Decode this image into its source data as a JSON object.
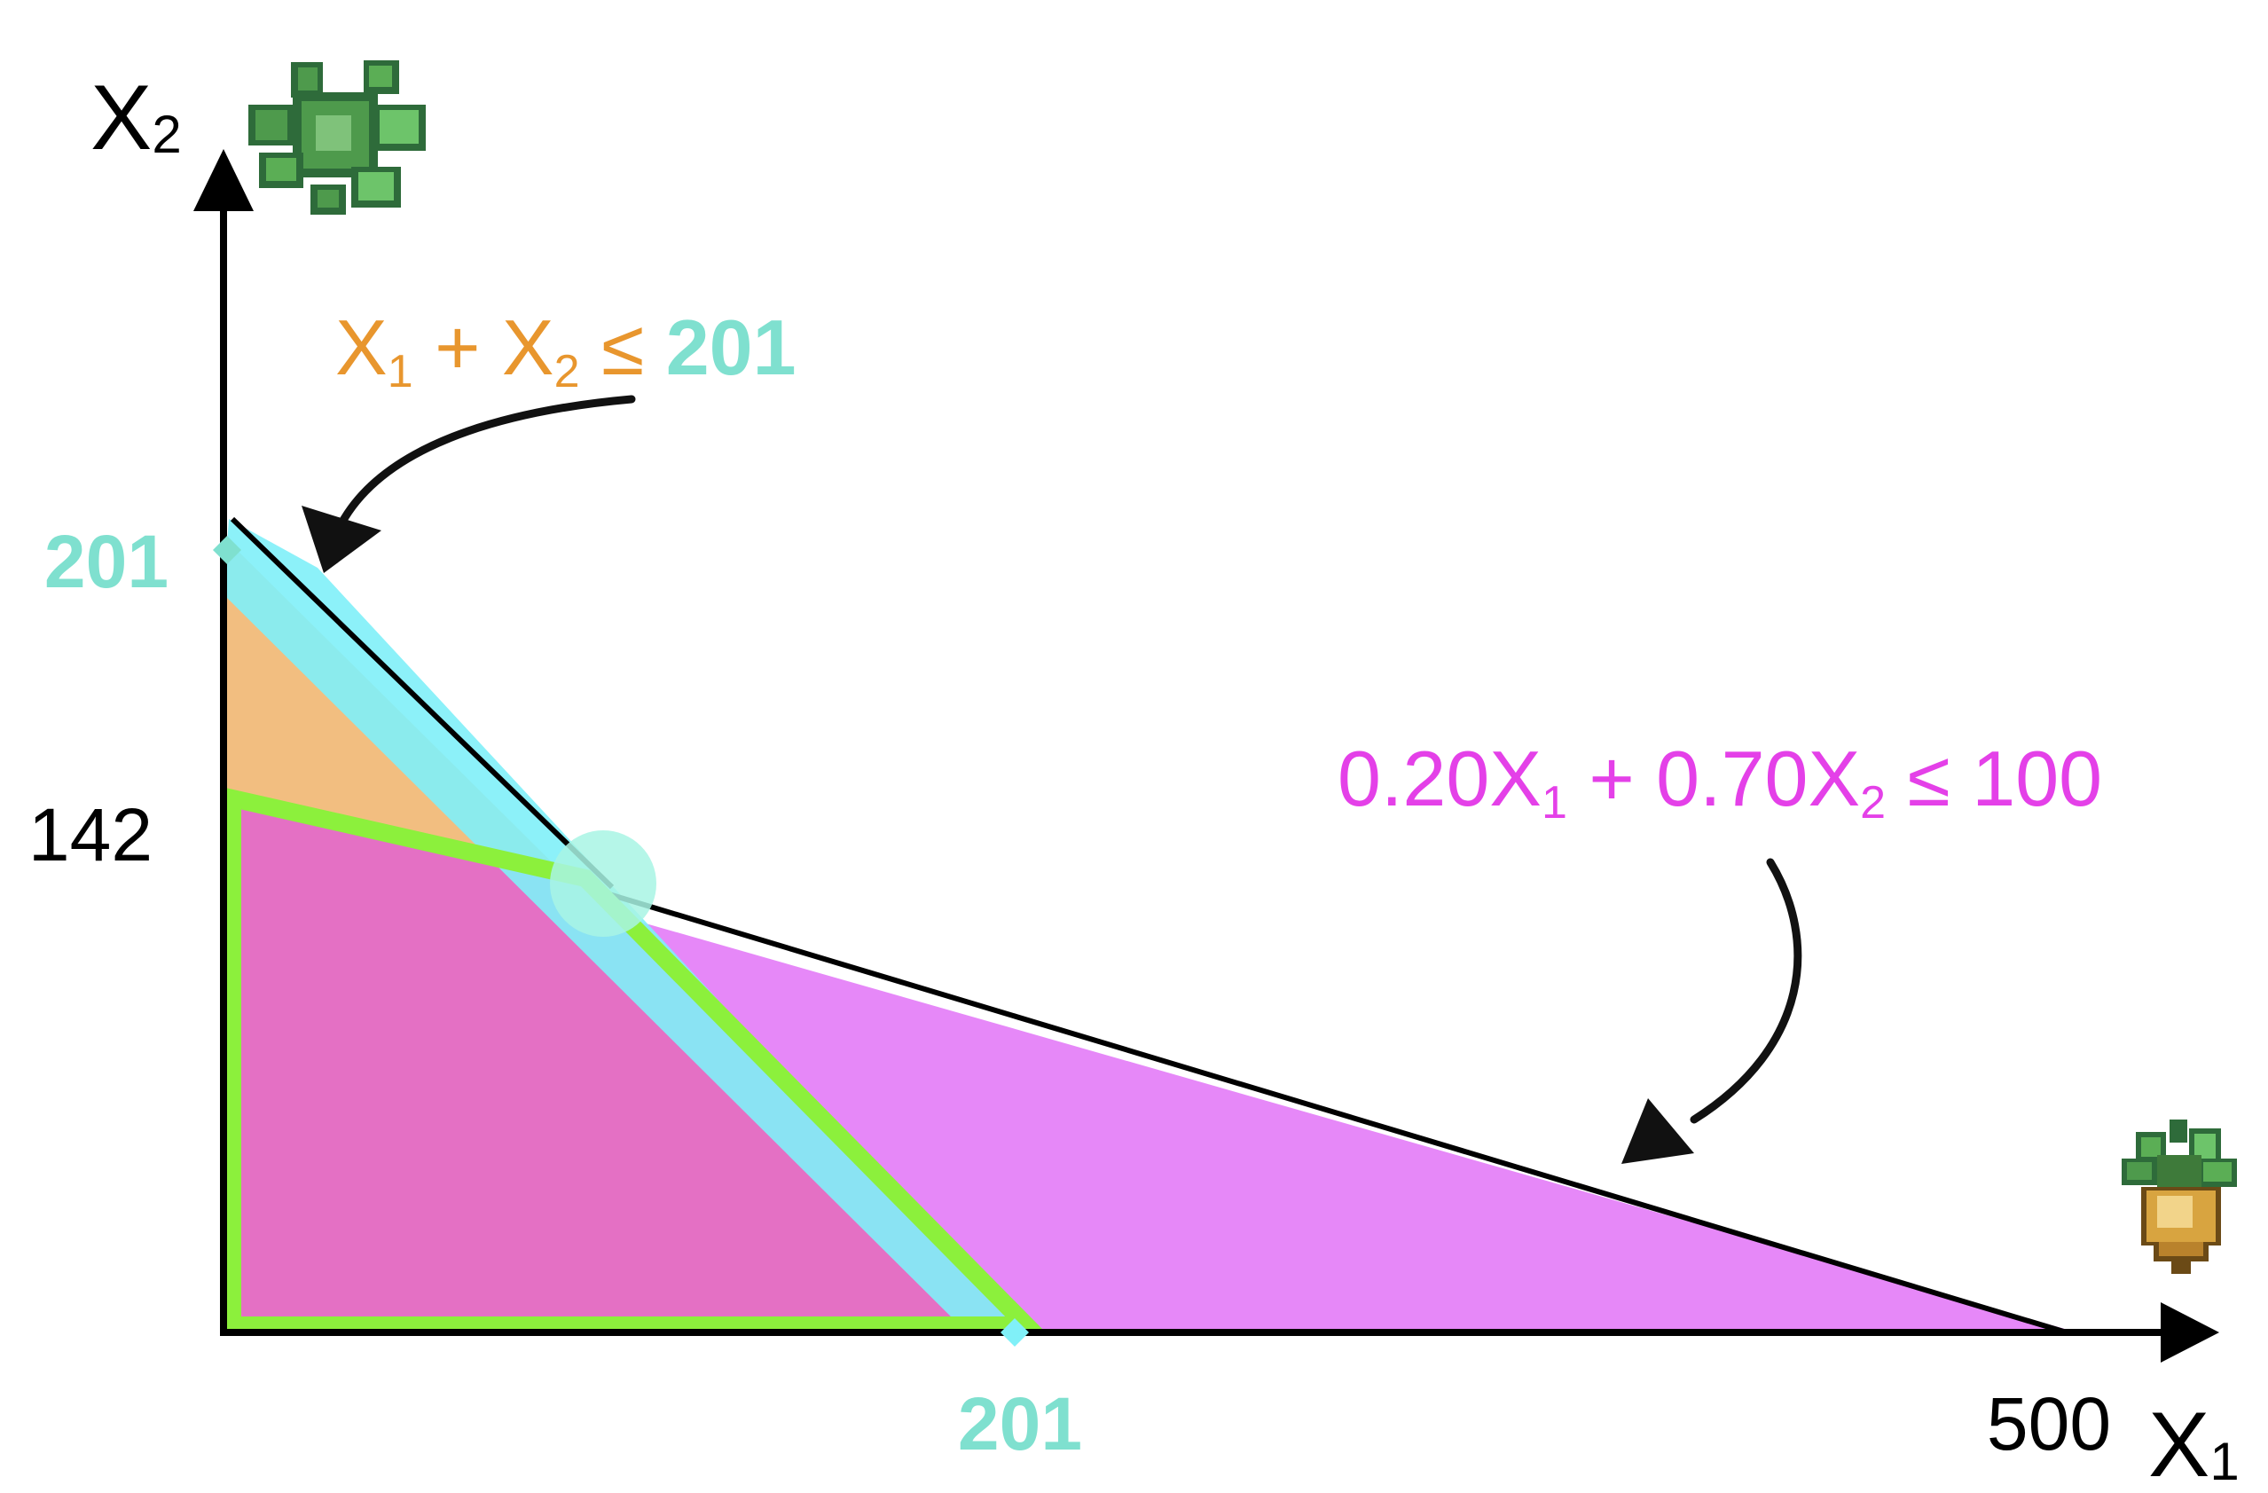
{
  "axes": {
    "x_label": "X",
    "x_sub": "1",
    "y_label": "X",
    "y_sub": "2"
  },
  "ticks": {
    "y_201": "201",
    "y_142": "142",
    "x_201": "201",
    "x_500": "500"
  },
  "constraints": {
    "c1": {
      "x1": "X",
      "s1": "1",
      "plus": " + X",
      "s2": "2",
      "leq": " ≤ ",
      "rhs": "201"
    },
    "c2": {
      "pre": "0.20X",
      "s1": "1",
      "mid": " + 0.70X",
      "s2": "2",
      "tail": " ≤ 100"
    }
  },
  "icons": {
    "y_axis": "leafy-vegetable-icon",
    "x_axis": "root-vegetable-icon"
  },
  "colors": {
    "orange": "#E8962E",
    "teal": "#7FE0CF",
    "magenta": "#E440E8",
    "feasible_border": "#8CF03C",
    "cyan": "#80F0F8",
    "region_pink": "#E470C4",
    "region_violet": "#E688F8"
  }
}
